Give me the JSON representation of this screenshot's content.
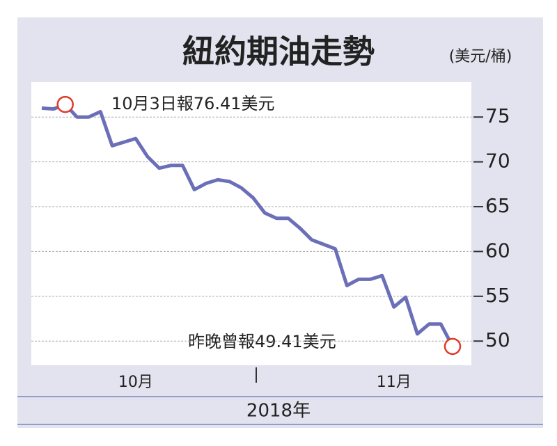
{
  "chart_data": {
    "type": "line",
    "title": "紐約期油走勢",
    "unit": "(美元/桶)",
    "annotations": [
      "10月3日報76.41美元",
      "昨晚曾報49.41美元"
    ],
    "xlabel": "2018年",
    "categories": [
      null,
      null,
      null,
      null,
      null,
      null,
      null,
      null,
      "10月",
      null,
      null,
      null,
      null,
      null,
      null,
      null,
      null,
      null,
      null,
      null,
      null,
      null,
      null,
      null,
      null,
      null,
      null,
      null,
      null,
      null,
      "11月",
      null,
      null,
      null,
      null,
      null
    ],
    "series": [
      {
        "color": "#6b6fb8",
        "values": [
          76.0,
          75.9,
          76.41,
          75.0,
          75.0,
          75.6,
          71.8,
          72.2,
          72.6,
          70.6,
          69.3,
          69.6,
          69.6,
          66.9,
          67.6,
          68.0,
          67.8,
          67.1,
          66.0,
          64.3,
          63.7,
          63.7,
          62.6,
          61.3,
          60.8,
          60.3,
          56.2,
          56.9,
          56.9,
          57.3,
          53.8,
          54.9,
          50.8,
          51.9,
          51.9,
          49.41
        ]
      }
    ],
    "ylim": [
      47.3,
      78.9
    ],
    "yticks": [
      50,
      55,
      60,
      65,
      70,
      75
    ],
    "grid": true
  }
}
